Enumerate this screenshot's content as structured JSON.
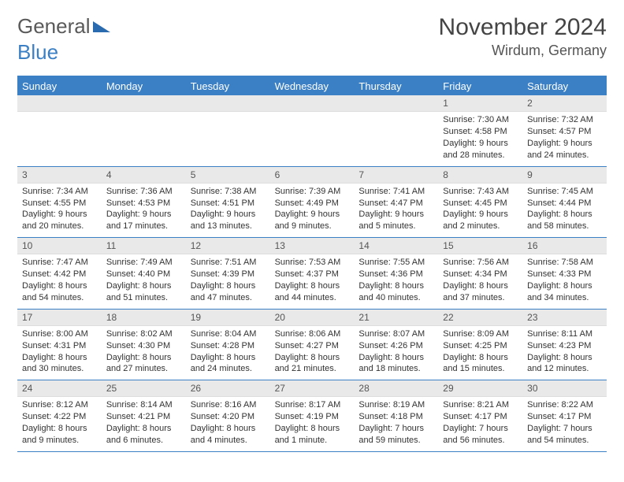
{
  "logo": {
    "part1": "General",
    "part2": "Blue"
  },
  "header": {
    "month_title": "November 2024",
    "location": "Wirdum, Germany"
  },
  "colors": {
    "accent": "#3b7fc4",
    "daynum_bg": "#e9e9e9",
    "text": "#333333"
  },
  "calendar": {
    "type": "table",
    "days_of_week": [
      "Sunday",
      "Monday",
      "Tuesday",
      "Wednesday",
      "Thursday",
      "Friday",
      "Saturday"
    ],
    "weeks": [
      [
        {
          "day": "",
          "sunrise": "",
          "sunset": "",
          "daylight1": "",
          "daylight2": ""
        },
        {
          "day": "",
          "sunrise": "",
          "sunset": "",
          "daylight1": "",
          "daylight2": ""
        },
        {
          "day": "",
          "sunrise": "",
          "sunset": "",
          "daylight1": "",
          "daylight2": ""
        },
        {
          "day": "",
          "sunrise": "",
          "sunset": "",
          "daylight1": "",
          "daylight2": ""
        },
        {
          "day": "",
          "sunrise": "",
          "sunset": "",
          "daylight1": "",
          "daylight2": ""
        },
        {
          "day": "1",
          "sunrise": "Sunrise: 7:30 AM",
          "sunset": "Sunset: 4:58 PM",
          "daylight1": "Daylight: 9 hours",
          "daylight2": "and 28 minutes."
        },
        {
          "day": "2",
          "sunrise": "Sunrise: 7:32 AM",
          "sunset": "Sunset: 4:57 PM",
          "daylight1": "Daylight: 9 hours",
          "daylight2": "and 24 minutes."
        }
      ],
      [
        {
          "day": "3",
          "sunrise": "Sunrise: 7:34 AM",
          "sunset": "Sunset: 4:55 PM",
          "daylight1": "Daylight: 9 hours",
          "daylight2": "and 20 minutes."
        },
        {
          "day": "4",
          "sunrise": "Sunrise: 7:36 AM",
          "sunset": "Sunset: 4:53 PM",
          "daylight1": "Daylight: 9 hours",
          "daylight2": "and 17 minutes."
        },
        {
          "day": "5",
          "sunrise": "Sunrise: 7:38 AM",
          "sunset": "Sunset: 4:51 PM",
          "daylight1": "Daylight: 9 hours",
          "daylight2": "and 13 minutes."
        },
        {
          "day": "6",
          "sunrise": "Sunrise: 7:39 AM",
          "sunset": "Sunset: 4:49 PM",
          "daylight1": "Daylight: 9 hours",
          "daylight2": "and 9 minutes."
        },
        {
          "day": "7",
          "sunrise": "Sunrise: 7:41 AM",
          "sunset": "Sunset: 4:47 PM",
          "daylight1": "Daylight: 9 hours",
          "daylight2": "and 5 minutes."
        },
        {
          "day": "8",
          "sunrise": "Sunrise: 7:43 AM",
          "sunset": "Sunset: 4:45 PM",
          "daylight1": "Daylight: 9 hours",
          "daylight2": "and 2 minutes."
        },
        {
          "day": "9",
          "sunrise": "Sunrise: 7:45 AM",
          "sunset": "Sunset: 4:44 PM",
          "daylight1": "Daylight: 8 hours",
          "daylight2": "and 58 minutes."
        }
      ],
      [
        {
          "day": "10",
          "sunrise": "Sunrise: 7:47 AM",
          "sunset": "Sunset: 4:42 PM",
          "daylight1": "Daylight: 8 hours",
          "daylight2": "and 54 minutes."
        },
        {
          "day": "11",
          "sunrise": "Sunrise: 7:49 AM",
          "sunset": "Sunset: 4:40 PM",
          "daylight1": "Daylight: 8 hours",
          "daylight2": "and 51 minutes."
        },
        {
          "day": "12",
          "sunrise": "Sunrise: 7:51 AM",
          "sunset": "Sunset: 4:39 PM",
          "daylight1": "Daylight: 8 hours",
          "daylight2": "and 47 minutes."
        },
        {
          "day": "13",
          "sunrise": "Sunrise: 7:53 AM",
          "sunset": "Sunset: 4:37 PM",
          "daylight1": "Daylight: 8 hours",
          "daylight2": "and 44 minutes."
        },
        {
          "day": "14",
          "sunrise": "Sunrise: 7:55 AM",
          "sunset": "Sunset: 4:36 PM",
          "daylight1": "Daylight: 8 hours",
          "daylight2": "and 40 minutes."
        },
        {
          "day": "15",
          "sunrise": "Sunrise: 7:56 AM",
          "sunset": "Sunset: 4:34 PM",
          "daylight1": "Daylight: 8 hours",
          "daylight2": "and 37 minutes."
        },
        {
          "day": "16",
          "sunrise": "Sunrise: 7:58 AM",
          "sunset": "Sunset: 4:33 PM",
          "daylight1": "Daylight: 8 hours",
          "daylight2": "and 34 minutes."
        }
      ],
      [
        {
          "day": "17",
          "sunrise": "Sunrise: 8:00 AM",
          "sunset": "Sunset: 4:31 PM",
          "daylight1": "Daylight: 8 hours",
          "daylight2": "and 30 minutes."
        },
        {
          "day": "18",
          "sunrise": "Sunrise: 8:02 AM",
          "sunset": "Sunset: 4:30 PM",
          "daylight1": "Daylight: 8 hours",
          "daylight2": "and 27 minutes."
        },
        {
          "day": "19",
          "sunrise": "Sunrise: 8:04 AM",
          "sunset": "Sunset: 4:28 PM",
          "daylight1": "Daylight: 8 hours",
          "daylight2": "and 24 minutes."
        },
        {
          "day": "20",
          "sunrise": "Sunrise: 8:06 AM",
          "sunset": "Sunset: 4:27 PM",
          "daylight1": "Daylight: 8 hours",
          "daylight2": "and 21 minutes."
        },
        {
          "day": "21",
          "sunrise": "Sunrise: 8:07 AM",
          "sunset": "Sunset: 4:26 PM",
          "daylight1": "Daylight: 8 hours",
          "daylight2": "and 18 minutes."
        },
        {
          "day": "22",
          "sunrise": "Sunrise: 8:09 AM",
          "sunset": "Sunset: 4:25 PM",
          "daylight1": "Daylight: 8 hours",
          "daylight2": "and 15 minutes."
        },
        {
          "day": "23",
          "sunrise": "Sunrise: 8:11 AM",
          "sunset": "Sunset: 4:23 PM",
          "daylight1": "Daylight: 8 hours",
          "daylight2": "and 12 minutes."
        }
      ],
      [
        {
          "day": "24",
          "sunrise": "Sunrise: 8:12 AM",
          "sunset": "Sunset: 4:22 PM",
          "daylight1": "Daylight: 8 hours",
          "daylight2": "and 9 minutes."
        },
        {
          "day": "25",
          "sunrise": "Sunrise: 8:14 AM",
          "sunset": "Sunset: 4:21 PM",
          "daylight1": "Daylight: 8 hours",
          "daylight2": "and 6 minutes."
        },
        {
          "day": "26",
          "sunrise": "Sunrise: 8:16 AM",
          "sunset": "Sunset: 4:20 PM",
          "daylight1": "Daylight: 8 hours",
          "daylight2": "and 4 minutes."
        },
        {
          "day": "27",
          "sunrise": "Sunrise: 8:17 AM",
          "sunset": "Sunset: 4:19 PM",
          "daylight1": "Daylight: 8 hours",
          "daylight2": "and 1 minute."
        },
        {
          "day": "28",
          "sunrise": "Sunrise: 8:19 AM",
          "sunset": "Sunset: 4:18 PM",
          "daylight1": "Daylight: 7 hours",
          "daylight2": "and 59 minutes."
        },
        {
          "day": "29",
          "sunrise": "Sunrise: 8:21 AM",
          "sunset": "Sunset: 4:17 PM",
          "daylight1": "Daylight: 7 hours",
          "daylight2": "and 56 minutes."
        },
        {
          "day": "30",
          "sunrise": "Sunrise: 8:22 AM",
          "sunset": "Sunset: 4:17 PM",
          "daylight1": "Daylight: 7 hours",
          "daylight2": "and 54 minutes."
        }
      ]
    ]
  }
}
